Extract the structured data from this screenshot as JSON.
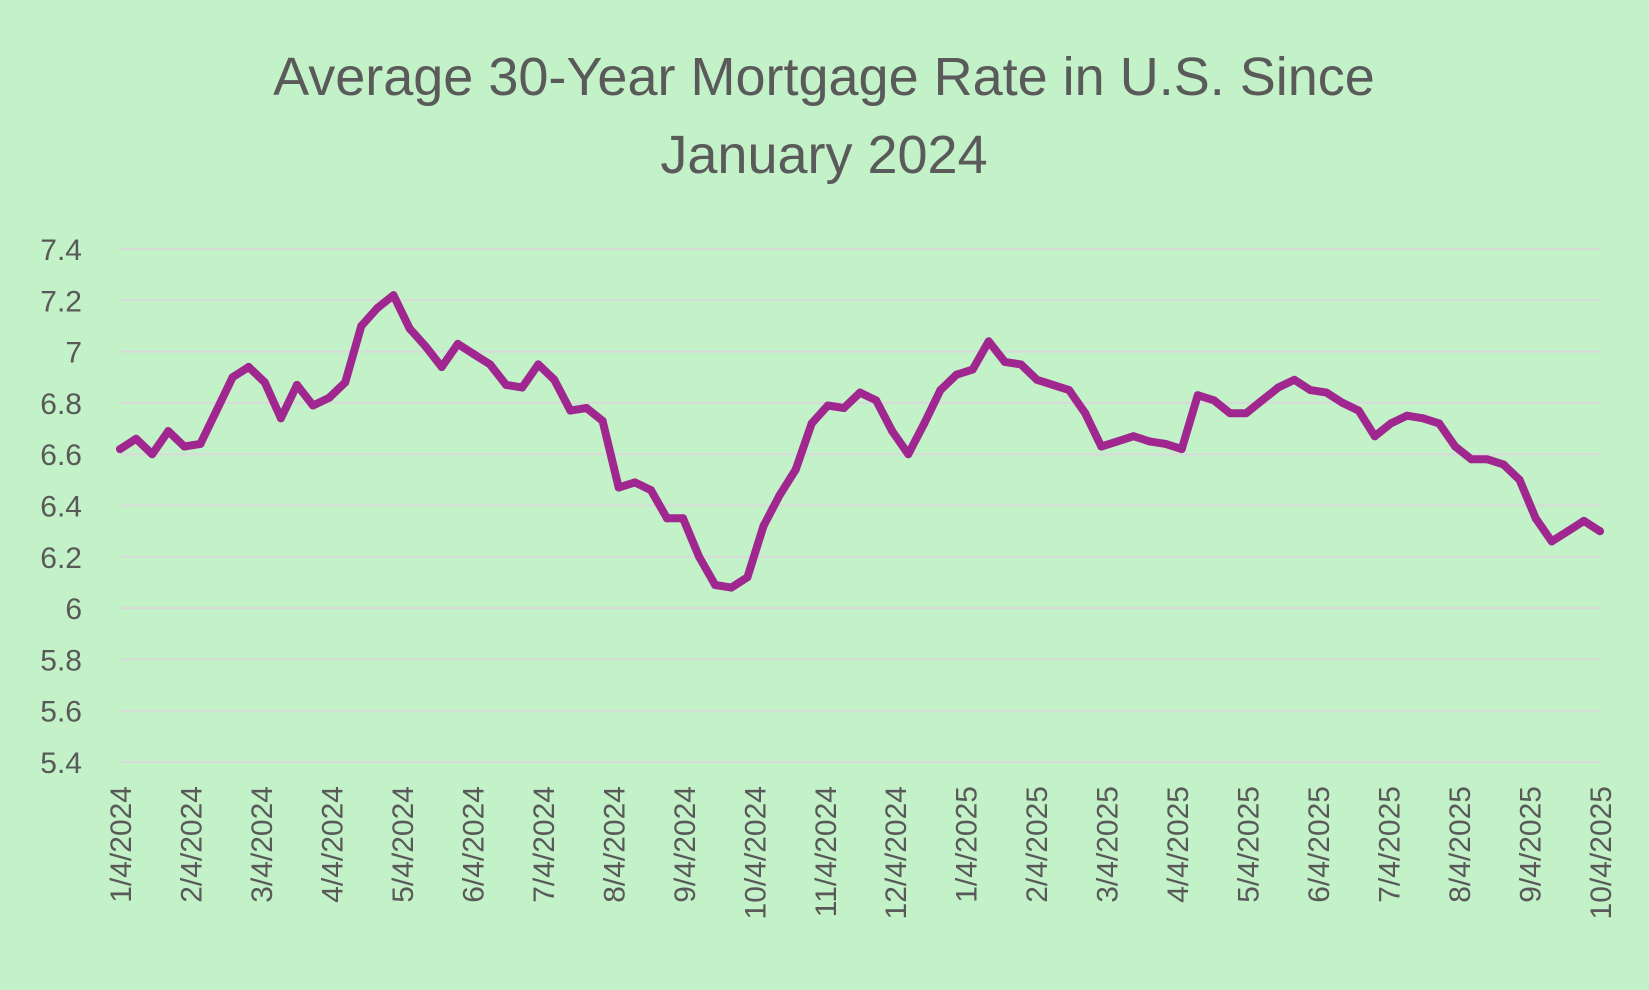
{
  "colors": {
    "background": "#c3f1c8",
    "series": "#a0278f",
    "gridline": "#d9d9d9",
    "text": "#595959"
  },
  "chart_data": {
    "type": "line",
    "title": "Average 30-Year Mortgage Rate in U.S. Since January 2024",
    "xlabel": "",
    "ylabel": "",
    "ylim": [
      5.4,
      7.4
    ],
    "yticks": [
      "7.4",
      "7.2",
      "7",
      "6.8",
      "6.6",
      "6.4",
      "6.2",
      "6",
      "5.8",
      "5.6",
      "5.4"
    ],
    "xtick_labels": [
      "1/4/2024",
      "2/4/2024",
      "3/4/2024",
      "4/4/2024",
      "5/4/2024",
      "6/4/2024",
      "7/4/2024",
      "8/4/2024",
      "9/4/2024",
      "10/4/2024",
      "11/4/2024",
      "12/4/2024",
      "1/4/2025",
      "2/4/2025",
      "3/4/2025",
      "4/4/2025",
      "5/4/2025",
      "6/4/2025",
      "7/4/2025",
      "8/4/2025",
      "9/4/2025",
      "10/4/2025"
    ],
    "grid": true,
    "legend": "none",
    "series": [
      {
        "values": [
          6.62,
          6.66,
          6.6,
          6.69,
          6.63,
          6.64,
          6.77,
          6.9,
          6.94,
          6.88,
          6.74,
          6.87,
          6.79,
          6.82,
          6.88,
          7.1,
          7.17,
          7.22,
          7.09,
          7.02,
          6.94,
          7.03,
          6.99,
          6.95,
          6.87,
          6.86,
          6.95,
          6.89,
          6.77,
          6.78,
          6.73,
          6.47,
          6.49,
          6.46,
          6.35,
          6.35,
          6.2,
          6.09,
          6.08,
          6.12,
          6.32,
          6.44,
          6.54,
          6.72,
          6.79,
          6.78,
          6.84,
          6.81,
          6.69,
          6.6,
          6.72,
          6.85,
          6.91,
          6.93,
          7.04,
          6.96,
          6.95,
          6.89,
          6.87,
          6.85,
          6.76,
          6.63,
          6.65,
          6.67,
          6.65,
          6.64,
          6.62,
          6.83,
          6.81,
          6.76,
          6.76,
          6.81,
          6.86,
          6.89,
          6.85,
          6.84,
          6.8,
          6.77,
          6.67,
          6.72,
          6.75,
          6.74,
          6.72,
          6.63,
          6.58,
          6.58,
          6.56,
          6.5,
          6.35,
          6.26,
          6.3,
          6.34,
          6.3
        ]
      }
    ]
  }
}
